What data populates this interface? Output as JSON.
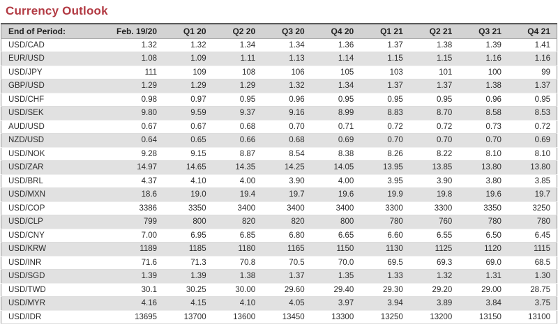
{
  "title": "Currency Outlook",
  "colors": {
    "title_red": "#b23a43",
    "header_bg": "#d3d3d3",
    "stripe_bg": "#e1e1e1",
    "table_border": "#5a5a5a"
  },
  "table": {
    "header": [
      "End of Period:",
      "Feb. 19/20",
      "Q1 20",
      "Q2 20",
      "Q3 20",
      "Q4 20",
      "Q1 21",
      "Q2 21",
      "Q3 21",
      "Q4 21"
    ],
    "rows": [
      {
        "pair": "USD/CAD",
        "values": [
          "1.32",
          "1.32",
          "1.34",
          "1.34",
          "1.36",
          "1.37",
          "1.38",
          "1.39",
          "1.41"
        ]
      },
      {
        "pair": "EUR/USD",
        "values": [
          "1.08",
          "1.09",
          "1.11",
          "1.13",
          "1.14",
          "1.15",
          "1.15",
          "1.16",
          "1.16"
        ]
      },
      {
        "pair": "USD/JPY",
        "values": [
          "111",
          "109",
          "108",
          "106",
          "105",
          "103",
          "101",
          "100",
          "99"
        ]
      },
      {
        "pair": "GBP/USD",
        "values": [
          "1.29",
          "1.29",
          "1.29",
          "1.32",
          "1.34",
          "1.37",
          "1.37",
          "1.38",
          "1.37"
        ]
      },
      {
        "pair": "USD/CHF",
        "values": [
          "0.98",
          "0.97",
          "0.95",
          "0.96",
          "0.95",
          "0.95",
          "0.95",
          "0.96",
          "0.95"
        ]
      },
      {
        "pair": "USD/SEK",
        "values": [
          "9.80",
          "9.59",
          "9.37",
          "9.16",
          "8.99",
          "8.83",
          "8.70",
          "8.58",
          "8.53"
        ]
      },
      {
        "pair": "AUD/USD",
        "values": [
          "0.67",
          "0.67",
          "0.68",
          "0.70",
          "0.71",
          "0.72",
          "0.72",
          "0.73",
          "0.72"
        ]
      },
      {
        "pair": "NZD/USD",
        "values": [
          "0.64",
          "0.65",
          "0.66",
          "0.68",
          "0.69",
          "0.70",
          "0.70",
          "0.70",
          "0.69"
        ]
      },
      {
        "pair": "USD/NOK",
        "values": [
          "9.28",
          "9.15",
          "8.87",
          "8.54",
          "8.38",
          "8.26",
          "8.22",
          "8.10",
          "8.10"
        ]
      },
      {
        "pair": "USD/ZAR",
        "values": [
          "14.97",
          "14.65",
          "14.35",
          "14.25",
          "14.05",
          "13.95",
          "13.85",
          "13.80",
          "13.80"
        ]
      },
      {
        "pair": "USD/BRL",
        "values": [
          "4.37",
          "4.10",
          "4.00",
          "3.90",
          "4.00",
          "3.95",
          "3.90",
          "3.80",
          "3.85"
        ]
      },
      {
        "pair": "USD/MXN",
        "values": [
          "18.6",
          "19.0",
          "19.4",
          "19.7",
          "19.6",
          "19.9",
          "19.8",
          "19.6",
          "19.7"
        ]
      },
      {
        "pair": "USD/COP",
        "values": [
          "3386",
          "3350",
          "3400",
          "3400",
          "3400",
          "3300",
          "3300",
          "3350",
          "3250"
        ]
      },
      {
        "pair": "USD/CLP",
        "values": [
          "799",
          "800",
          "820",
          "820",
          "800",
          "780",
          "760",
          "780",
          "780"
        ]
      },
      {
        "pair": "USD/CNY",
        "values": [
          "7.00",
          "6.95",
          "6.85",
          "6.80",
          "6.65",
          "6.60",
          "6.55",
          "6.50",
          "6.45"
        ]
      },
      {
        "pair": "USD/KRW",
        "values": [
          "1189",
          "1185",
          "1180",
          "1165",
          "1150",
          "1130",
          "1125",
          "1120",
          "1115"
        ]
      },
      {
        "pair": "USD/INR",
        "values": [
          "71.6",
          "71.3",
          "70.8",
          "70.5",
          "70.0",
          "69.5",
          "69.3",
          "69.0",
          "68.5"
        ]
      },
      {
        "pair": "USD/SGD",
        "values": [
          "1.39",
          "1.39",
          "1.38",
          "1.37",
          "1.35",
          "1.33",
          "1.32",
          "1.31",
          "1.30"
        ]
      },
      {
        "pair": "USD/TWD",
        "values": [
          "30.1",
          "30.25",
          "30.00",
          "29.60",
          "29.40",
          "29.30",
          "29.20",
          "29.00",
          "28.75"
        ]
      },
      {
        "pair": "USD/MYR",
        "values": [
          "4.16",
          "4.15",
          "4.10",
          "4.05",
          "3.97",
          "3.94",
          "3.89",
          "3.84",
          "3.75"
        ]
      },
      {
        "pair": "USD/IDR",
        "values": [
          "13695",
          "13700",
          "13600",
          "13450",
          "13300",
          "13250",
          "13200",
          "13150",
          "13100"
        ]
      }
    ]
  }
}
